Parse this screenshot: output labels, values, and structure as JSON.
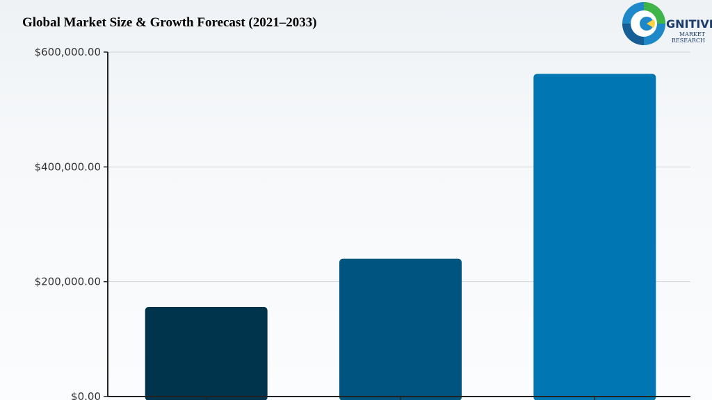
{
  "title": "Global Market Size & Growth Forecast (2021–2033)",
  "logo": {
    "line1": "GNITIVE",
    "line2": "MARKET",
    "line3": "RESEARCH"
  },
  "colors": {
    "bar1": "#00344d",
    "bar2": "#005580",
    "bar3": "#0076b3",
    "grid": "#cfd6dc",
    "axis": "#222222"
  },
  "chart_data": {
    "type": "bar",
    "title": "Global Market Size & Growth Forecast (2021–2033)",
    "categories": [
      "",
      "",
      ""
    ],
    "values": [
      156000,
      240000,
      562000
    ],
    "ylim": [
      0,
      600000
    ],
    "yticks": [
      0,
      200000,
      400000,
      600000
    ],
    "ytick_labels": [
      "$0.00",
      "$200,000.00",
      "$400,000.00",
      "$600,000.00"
    ],
    "xlabel": "",
    "ylabel": "",
    "grid": true
  }
}
